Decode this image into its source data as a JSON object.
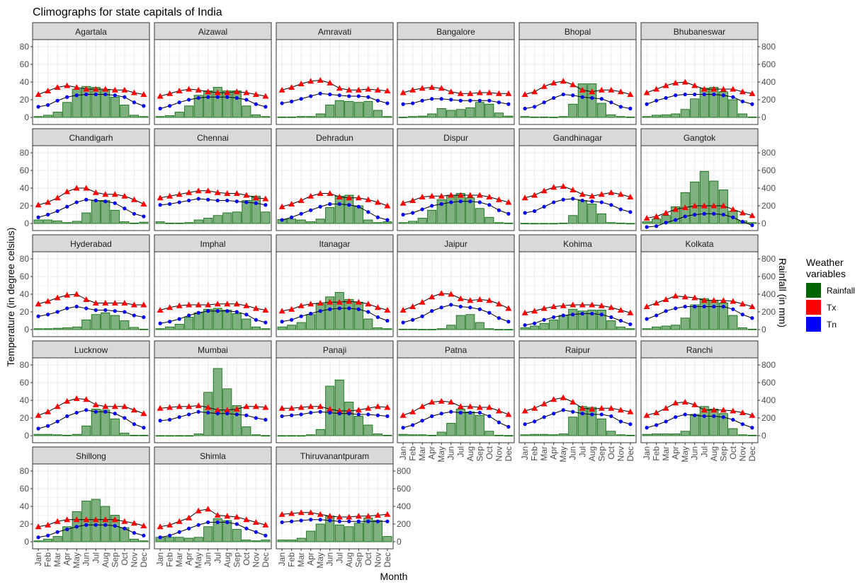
{
  "chart_data": {
    "type": "bar",
    "title": "Climographs for state capitals of India",
    "xlabel": "Month",
    "ylabel_left": "Temperature (in degree celsius)",
    "ylabel_right": "Rainfall (in mm)",
    "ylim_left": [
      -8,
      88
    ],
    "ylim_right": [
      -80,
      880
    ],
    "yticks_left": [
      "0",
      "20",
      "40",
      "60",
      "80"
    ],
    "yticks_right": [
      "0",
      "200",
      "400",
      "600",
      "800"
    ],
    "grid": true,
    "legend_position": "right",
    "legend": {
      "title": "Weather\nvariables",
      "entries": [
        {
          "name": "Rainfall",
          "color": "#006400"
        },
        {
          "name": "Tx",
          "color": "#ff0000"
        },
        {
          "name": "Tn",
          "color": "#0000ff"
        }
      ]
    },
    "categories": [
      "Jan",
      "Feb",
      "Mar",
      "Apr",
      "May",
      "Jun",
      "Jul",
      "Aug",
      "Sep",
      "Oct",
      "Nov",
      "Dec"
    ],
    "panels": [
      {
        "name": "Agartala",
        "rainfall": [
          10,
          25,
          60,
          170,
          320,
          350,
          340,
          310,
          230,
          140,
          25,
          10
        ],
        "tx": [
          26,
          30,
          34,
          36,
          34,
          32,
          32,
          32,
          31,
          31,
          28,
          26
        ],
        "tn": [
          12,
          14,
          19,
          23,
          25,
          26,
          26,
          26,
          25,
          23,
          17,
          13
        ]
      },
      {
        "name": "Aizawal",
        "rainfall": [
          10,
          20,
          60,
          130,
          250,
          300,
          340,
          300,
          300,
          130,
          30,
          10
        ],
        "tx": [
          24,
          27,
          30,
          32,
          31,
          29,
          28,
          28,
          29,
          28,
          26,
          24
        ],
        "tn": [
          10,
          13,
          17,
          20,
          22,
          23,
          23,
          23,
          22,
          20,
          15,
          12
        ]
      },
      {
        "name": "Amravati",
        "rainfall": [
          5,
          5,
          10,
          10,
          40,
          140,
          190,
          180,
          170,
          180,
          80,
          10
        ],
        "tx": [
          31,
          34,
          38,
          41,
          42,
          39,
          33,
          31,
          31,
          32,
          31,
          30
        ],
        "tn": [
          16,
          18,
          21,
          24,
          27,
          26,
          25,
          24,
          24,
          23,
          19,
          16
        ]
      },
      {
        "name": "Bangalore",
        "rainfall": [
          3,
          10,
          15,
          40,
          100,
          80,
          90,
          110,
          170,
          150,
          50,
          15
        ],
        "tx": [
          28,
          31,
          33,
          34,
          33,
          29,
          27,
          27,
          28,
          28,
          27,
          27
        ],
        "tn": [
          15,
          16,
          19,
          21,
          21,
          20,
          19,
          19,
          19,
          19,
          17,
          15
        ]
      },
      {
        "name": "Bhopal",
        "rainfall": [
          10,
          5,
          5,
          3,
          10,
          150,
          380,
          380,
          160,
          30,
          10,
          5
        ],
        "tx": [
          26,
          29,
          35,
          39,
          41,
          37,
          31,
          29,
          31,
          31,
          29,
          26
        ],
        "tn": [
          10,
          12,
          17,
          22,
          26,
          25,
          23,
          22,
          21,
          17,
          12,
          10
        ]
      },
      {
        "name": "Bhubaneswar",
        "rainfall": [
          10,
          25,
          30,
          40,
          90,
          210,
          330,
          340,
          290,
          200,
          40,
          5
        ],
        "tx": [
          28,
          32,
          36,
          39,
          40,
          36,
          32,
          32,
          32,
          32,
          29,
          27
        ],
        "tn": [
          15,
          19,
          22,
          25,
          26,
          26,
          26,
          26,
          25,
          23,
          18,
          15
        ]
      },
      {
        "name": "Chandigarh",
        "rainfall": [
          40,
          40,
          30,
          10,
          25,
          120,
          260,
          260,
          150,
          20,
          5,
          15
        ],
        "tx": [
          21,
          24,
          29,
          36,
          40,
          40,
          35,
          33,
          33,
          31,
          27,
          22
        ],
        "tn": [
          7,
          10,
          14,
          19,
          24,
          27,
          26,
          25,
          23,
          17,
          11,
          8
        ]
      },
      {
        "name": "Chennai",
        "rainfall": [
          20,
          5,
          5,
          10,
          40,
          60,
          90,
          120,
          130,
          260,
          310,
          130
        ],
        "tx": [
          29,
          31,
          33,
          35,
          37,
          37,
          35,
          34,
          34,
          32,
          29,
          28
        ],
        "tn": [
          21,
          22,
          24,
          26,
          28,
          27,
          26,
          26,
          25,
          24,
          23,
          21
        ]
      },
      {
        "name": "Dehradun",
        "rainfall": [
          45,
          50,
          40,
          20,
          50,
          180,
          310,
          320,
          200,
          40,
          10,
          20
        ],
        "tx": [
          19,
          22,
          26,
          31,
          34,
          34,
          30,
          29,
          29,
          27,
          24,
          20
        ],
        "tn": [
          4,
          7,
          11,
          15,
          19,
          22,
          22,
          21,
          19,
          13,
          7,
          4
        ]
      },
      {
        "name": "Dispur",
        "rainfall": [
          10,
          25,
          60,
          150,
          270,
          320,
          340,
          290,
          170,
          70,
          10,
          5
        ],
        "tx": [
          23,
          26,
          30,
          31,
          31,
          32,
          32,
          32,
          32,
          30,
          27,
          24
        ],
        "tn": [
          10,
          12,
          16,
          20,
          22,
          24,
          25,
          25,
          24,
          21,
          15,
          11
        ]
      },
      {
        "name": "Gandhinagar",
        "rainfall": [
          2,
          1,
          1,
          1,
          5,
          90,
          260,
          220,
          110,
          10,
          5,
          1
        ],
        "tx": [
          29,
          32,
          37,
          41,
          42,
          38,
          33,
          31,
          33,
          35,
          33,
          30
        ],
        "tn": [
          12,
          14,
          19,
          24,
          27,
          28,
          26,
          25,
          24,
          21,
          16,
          13
        ]
      },
      {
        "name": "Gangtok",
        "rainfall": [
          20,
          50,
          90,
          190,
          350,
          470,
          590,
          480,
          380,
          140,
          30,
          10
        ],
        "tx": [
          6,
          8,
          12,
          16,
          18,
          20,
          20,
          20,
          20,
          16,
          12,
          9
        ],
        "tn": [
          -4,
          -3,
          1,
          4,
          8,
          10,
          11,
          11,
          10,
          7,
          2,
          -2
        ]
      },
      {
        "name": "Hyderabad",
        "rainfall": [
          10,
          10,
          15,
          20,
          30,
          110,
          170,
          190,
          160,
          100,
          25,
          5
        ],
        "tx": [
          29,
          32,
          36,
          39,
          40,
          34,
          30,
          30,
          30,
          30,
          28,
          28
        ],
        "tn": [
          15,
          17,
          20,
          24,
          26,
          24,
          22,
          22,
          21,
          20,
          16,
          14
        ]
      },
      {
        "name": "Imphal",
        "rainfall": [
          10,
          30,
          60,
          140,
          190,
          230,
          240,
          220,
          180,
          120,
          30,
          10
        ],
        "tx": [
          22,
          25,
          27,
          28,
          28,
          28,
          29,
          29,
          29,
          27,
          24,
          22
        ],
        "tn": [
          7,
          9,
          12,
          16,
          19,
          21,
          21,
          21,
          20,
          17,
          11,
          8
        ]
      },
      {
        "name": "Itanagar",
        "rainfall": [
          30,
          50,
          80,
          170,
          290,
          370,
          420,
          340,
          310,
          120,
          20,
          10
        ],
        "tx": [
          21,
          23,
          27,
          29,
          30,
          31,
          31,
          32,
          31,
          29,
          25,
          22
        ],
        "tn": [
          9,
          11,
          15,
          18,
          21,
          23,
          24,
          24,
          23,
          20,
          14,
          10
        ]
      },
      {
        "name": "Jaipur",
        "rainfall": [
          5,
          5,
          3,
          3,
          10,
          50,
          160,
          170,
          80,
          10,
          2,
          2
        ],
        "tx": [
          22,
          26,
          31,
          37,
          41,
          40,
          35,
          33,
          34,
          33,
          29,
          24
        ],
        "tn": [
          8,
          11,
          15,
          21,
          25,
          28,
          26,
          25,
          23,
          19,
          13,
          9
        ]
      },
      {
        "name": "Kohima",
        "rainfall": [
          20,
          40,
          70,
          110,
          160,
          230,
          210,
          220,
          220,
          100,
          30,
          10
        ],
        "tx": [
          19,
          21,
          24,
          26,
          27,
          28,
          28,
          28,
          27,
          25,
          22,
          19
        ],
        "tn": [
          5,
          7,
          11,
          14,
          16,
          17,
          18,
          18,
          17,
          14,
          10,
          6
        ]
      },
      {
        "name": "Kolkata",
        "rainfall": [
          10,
          30,
          40,
          50,
          130,
          280,
          350,
          330,
          300,
          160,
          20,
          5
        ],
        "tx": [
          26,
          30,
          34,
          38,
          37,
          36,
          33,
          33,
          33,
          32,
          29,
          26
        ],
        "tn": [
          12,
          16,
          21,
          24,
          26,
          26,
          26,
          26,
          26,
          23,
          17,
          13
        ]
      },
      {
        "name": "Lucknow",
        "rainfall": [
          15,
          15,
          10,
          5,
          15,
          110,
          300,
          290,
          190,
          30,
          5,
          5
        ],
        "tx": [
          23,
          27,
          33,
          39,
          42,
          41,
          35,
          33,
          33,
          33,
          29,
          25
        ],
        "tn": [
          8,
          11,
          16,
          22,
          26,
          29,
          27,
          27,
          25,
          20,
          13,
          9
        ]
      },
      {
        "name": "Mumbai",
        "rainfall": [
          1,
          1,
          1,
          1,
          20,
          490,
          760,
          530,
          340,
          100,
          10,
          2
        ],
        "tx": [
          31,
          32,
          33,
          33,
          34,
          32,
          29,
          29,
          30,
          33,
          33,
          32
        ],
        "tn": [
          17,
          18,
          21,
          24,
          27,
          26,
          25,
          25,
          24,
          23,
          20,
          18
        ]
      },
      {
        "name": "Panaji",
        "rainfall": [
          1,
          1,
          1,
          10,
          70,
          560,
          630,
          380,
          220,
          120,
          20,
          5
        ],
        "tx": [
          31,
          31,
          32,
          33,
          33,
          30,
          28,
          28,
          29,
          31,
          33,
          32
        ],
        "tn": [
          22,
          23,
          24,
          26,
          27,
          26,
          25,
          25,
          24,
          24,
          23,
          22
        ]
      },
      {
        "name": "Patna",
        "rainfall": [
          15,
          10,
          10,
          5,
          40,
          140,
          300,
          270,
          230,
          50,
          5,
          2
        ],
        "tx": [
          23,
          27,
          33,
          38,
          39,
          38,
          33,
          33,
          32,
          32,
          28,
          24
        ],
        "tn": [
          9,
          12,
          17,
          22,
          25,
          27,
          26,
          26,
          26,
          22,
          15,
          10
        ]
      },
      {
        "name": "Raipur",
        "rainfall": [
          10,
          15,
          15,
          10,
          20,
          210,
          330,
          320,
          190,
          50,
          10,
          5
        ],
        "tx": [
          28,
          31,
          36,
          41,
          43,
          38,
          31,
          30,
          31,
          31,
          29,
          27
        ],
        "tn": [
          13,
          16,
          21,
          25,
          29,
          27,
          25,
          24,
          24,
          22,
          16,
          13
        ]
      },
      {
        "name": "Ranchi",
        "rainfall": [
          15,
          20,
          20,
          20,
          50,
          240,
          330,
          300,
          250,
          80,
          10,
          5
        ],
        "tx": [
          23,
          26,
          31,
          37,
          38,
          35,
          29,
          29,
          29,
          28,
          26,
          23
        ],
        "tn": [
          9,
          12,
          16,
          21,
          24,
          23,
          22,
          22,
          21,
          18,
          13,
          9
        ]
      },
      {
        "name": "Shillong",
        "rainfall": [
          10,
          30,
          60,
          170,
          340,
          460,
          480,
          400,
          300,
          160,
          30,
          10
        ],
        "tx": [
          17,
          19,
          23,
          25,
          25,
          25,
          25,
          25,
          25,
          23,
          21,
          18
        ],
        "tn": [
          5,
          7,
          11,
          14,
          17,
          19,
          19,
          19,
          18,
          15,
          10,
          7
        ]
      },
      {
        "name": "Shimla",
        "rainfall": [
          50,
          50,
          50,
          40,
          50,
          170,
          260,
          240,
          140,
          20,
          10,
          20
        ],
        "tx": [
          17,
          19,
          23,
          27,
          35,
          37,
          30,
          29,
          28,
          25,
          22,
          19
        ],
        "tn": [
          5,
          7,
          11,
          15,
          19,
          22,
          22,
          22,
          20,
          15,
          11,
          7
        ]
      },
      {
        "name": "Thiruvanantpuram",
        "rainfall": [
          20,
          20,
          40,
          120,
          200,
          290,
          190,
          170,
          210,
          270,
          240,
          60
        ],
        "tx": [
          31,
          32,
          33,
          33,
          31,
          29,
          28,
          28,
          29,
          29,
          30,
          31
        ],
        "tn": [
          22,
          23,
          24,
          25,
          25,
          24,
          23,
          23,
          23,
          23,
          23,
          23
        ]
      }
    ]
  },
  "colors": {
    "rainfall_fill": "#7fb07f",
    "rainfall_border": "#006400",
    "tx": "#ff0000",
    "tn": "#0000ff",
    "strip_bg": "#d9d9d9",
    "grid": "#ebebeb"
  }
}
